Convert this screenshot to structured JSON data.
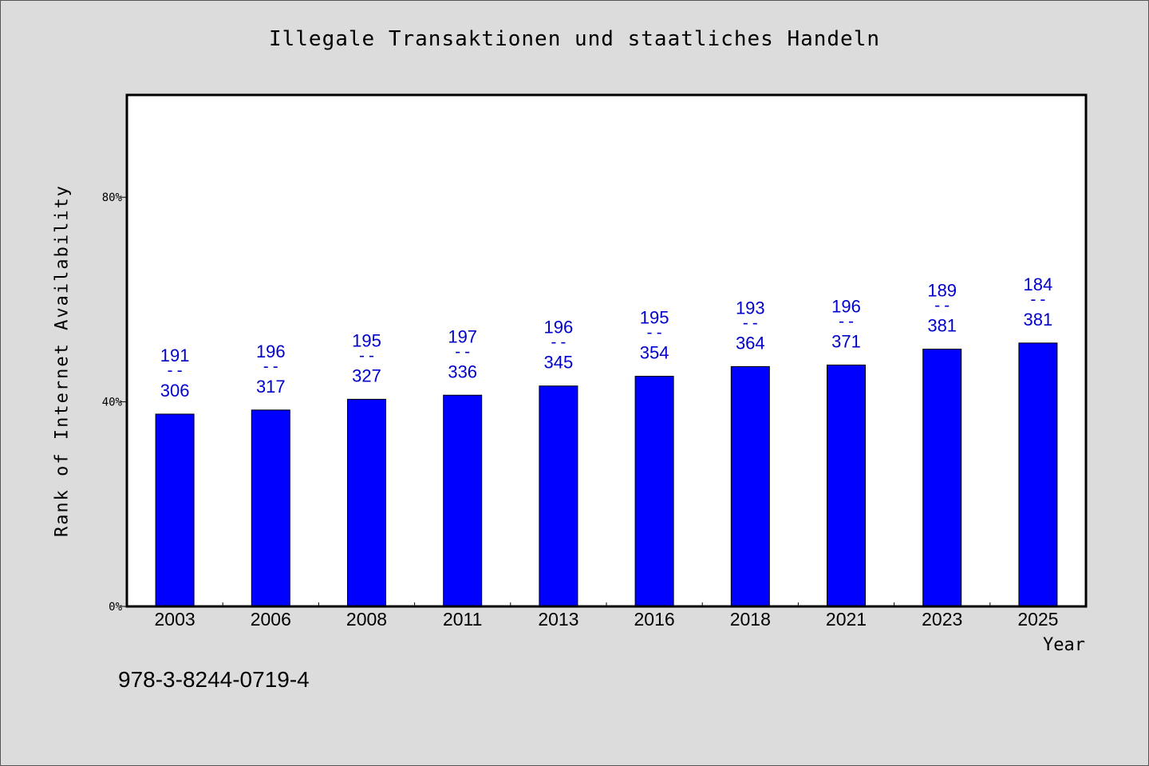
{
  "chart_data": {
    "type": "bar",
    "title": "Illegale Transaktionen und staatliches Handeln",
    "xlabel": "Year",
    "ylabel": "Rank of Internet Availability",
    "ylim": [
      0,
      100
    ],
    "yticks": [
      0,
      40,
      80
    ],
    "ytick_labels": [
      "0%",
      "40%",
      "80%"
    ],
    "categories": [
      "2003",
      "2006",
      "2008",
      "2011",
      "2013",
      "2016",
      "2018",
      "2021",
      "2023",
      "2025"
    ],
    "values": [
      37.6,
      38.4,
      40.5,
      41.3,
      43.1,
      45.0,
      46.9,
      47.2,
      50.3,
      51.5
    ],
    "rank_labels": [
      {
        "top": "191",
        "bottom": "306"
      },
      {
        "top": "196",
        "bottom": "317"
      },
      {
        "top": "195",
        "bottom": "327"
      },
      {
        "top": "197",
        "bottom": "336"
      },
      {
        "top": "196",
        "bottom": "345"
      },
      {
        "top": "195",
        "bottom": "354"
      },
      {
        "top": "193",
        "bottom": "364"
      },
      {
        "top": "196",
        "bottom": "371"
      },
      {
        "top": "189",
        "bottom": "381"
      },
      {
        "top": "184",
        "bottom": "381"
      }
    ],
    "label_separator": "--",
    "bar_color": "#0000ff",
    "label_color": "#0000cc",
    "grid": false
  },
  "footnote": "978-3-8244-0719-4"
}
